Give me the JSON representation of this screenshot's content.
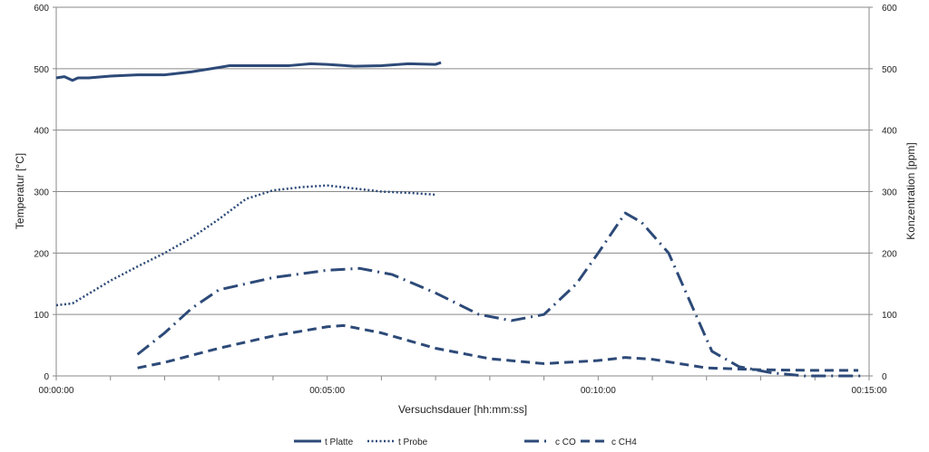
{
  "chart_data": {
    "type": "line",
    "xlabel": "Versuchsdauer [hh:mm:ss]",
    "ylabel": "Temperatur [°C]",
    "y2label": "Konzentration [ppm]",
    "ylim": [
      0,
      600
    ],
    "y2lim": [
      0,
      600
    ],
    "yticks": [
      "0",
      "100",
      "200",
      "300",
      "400",
      "500",
      "600"
    ],
    "xlim_minutes": [
      0,
      15
    ],
    "xticks": [
      {
        "v": 0,
        "label": "00:00:00"
      },
      {
        "v": 5,
        "label": "00:05:00"
      },
      {
        "v": 10,
        "label": "00:10:00"
      },
      {
        "v": 15,
        "label": "00:15:00"
      }
    ],
    "grid": "horizontal",
    "legend": "bottom",
    "series": [
      {
        "name": "t Platte",
        "axis": "left",
        "dash": "solid",
        "x": [
          0,
          0.15,
          0.3,
          0.4,
          0.6,
          1,
          1.5,
          2,
          2.5,
          3,
          3.2,
          4,
          4.3,
          4.7,
          5,
          5.5,
          6,
          6.5,
          7,
          7.1
        ],
        "y": [
          485,
          487,
          481,
          485,
          485,
          488,
          490,
          490,
          495,
          502,
          505,
          505,
          505,
          508,
          507,
          504,
          505,
          508,
          507,
          510
        ]
      },
      {
        "name": "t Probe",
        "axis": "left",
        "dash": "dot",
        "x": [
          0,
          0.3,
          1,
          1.5,
          2,
          2.5,
          3,
          3.5,
          4,
          4.5,
          5,
          5.5,
          6,
          6.5,
          7
        ],
        "y": [
          115,
          118,
          155,
          178,
          200,
          225,
          255,
          288,
          302,
          307,
          310,
          305,
          300,
          298,
          295
        ]
      },
      {
        "name": "c CO",
        "axis": "right",
        "dash": "dashdot",
        "x": [
          1.5,
          2,
          2.5,
          3,
          4,
          5,
          5.6,
          6.2,
          7,
          7.8,
          8.4,
          9,
          9.6,
          10,
          10.5,
          10.8,
          11.3,
          11.7,
          12.1,
          12.6,
          13.2,
          13.8,
          14.9
        ],
        "y": [
          35,
          70,
          110,
          140,
          160,
          172,
          175,
          165,
          135,
          100,
          90,
          100,
          150,
          200,
          265,
          250,
          200,
          120,
          40,
          15,
          5,
          0,
          0
        ]
      },
      {
        "name": "c CH4",
        "axis": "right",
        "dash": "dash",
        "x": [
          1.5,
          2,
          3,
          4,
          5,
          5.3,
          6,
          7,
          8,
          9,
          10,
          10.5,
          11,
          12,
          13,
          14,
          14.8
        ],
        "y": [
          13,
          22,
          45,
          65,
          80,
          82,
          70,
          45,
          28,
          20,
          25,
          30,
          27,
          13,
          10,
          9,
          9
        ]
      }
    ]
  },
  "colors": {
    "line": "#2d4a78",
    "grid": "#8a8a8a"
  }
}
